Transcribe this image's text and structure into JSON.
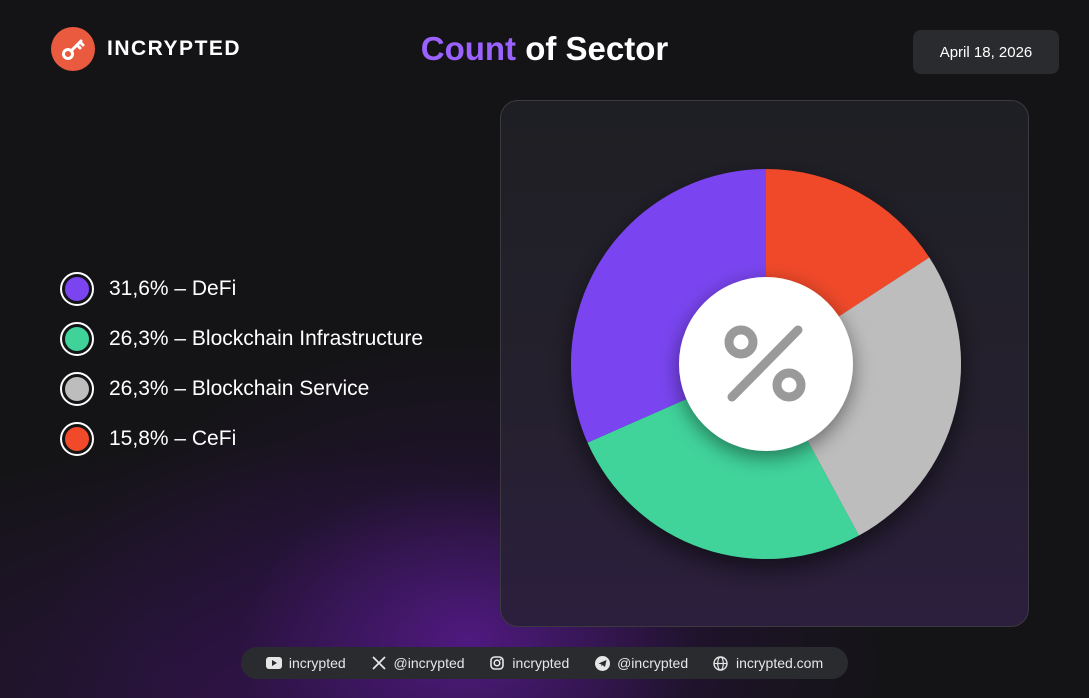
{
  "brand": {
    "name": "INCRYPTED",
    "icon": "key-icon",
    "color": "#ea5a3f"
  },
  "title": {
    "accent": "Count",
    "rest": " of Sector"
  },
  "date": "April 18, 2026",
  "legend": [
    {
      "label": "31,6% – DeFi",
      "color": "#7a45f0"
    },
    {
      "label": "26,3% – Blockchain Infrastructure",
      "color": "#3fd39a"
    },
    {
      "label": "26,3% – Blockchain Service",
      "color": "#bdbdbd"
    },
    {
      "label": "15,8% – CeFi",
      "color": "#f04a2a"
    }
  ],
  "chart_data": {
    "type": "pie",
    "variant": "donut",
    "title": "Count of Sector",
    "center_icon": "percent-icon",
    "categories": [
      "CeFi",
      "Blockchain Service",
      "Blockchain Infrastructure",
      "DeFi"
    ],
    "values": [
      15.8,
      26.3,
      26.3,
      31.6
    ],
    "colors": [
      "#f04a2a",
      "#bdbdbd",
      "#3fd39a",
      "#7a45f0"
    ],
    "start": "top, clockwise"
  },
  "footer": [
    {
      "icon": "youtube-icon",
      "label": "incrypted"
    },
    {
      "icon": "x-icon",
      "label": "@incrypted"
    },
    {
      "icon": "instagram-icon",
      "label": "incrypted"
    },
    {
      "icon": "telegram-icon",
      "label": "@incrypted"
    },
    {
      "icon": "globe-icon",
      "label": "incrypted.com"
    }
  ]
}
